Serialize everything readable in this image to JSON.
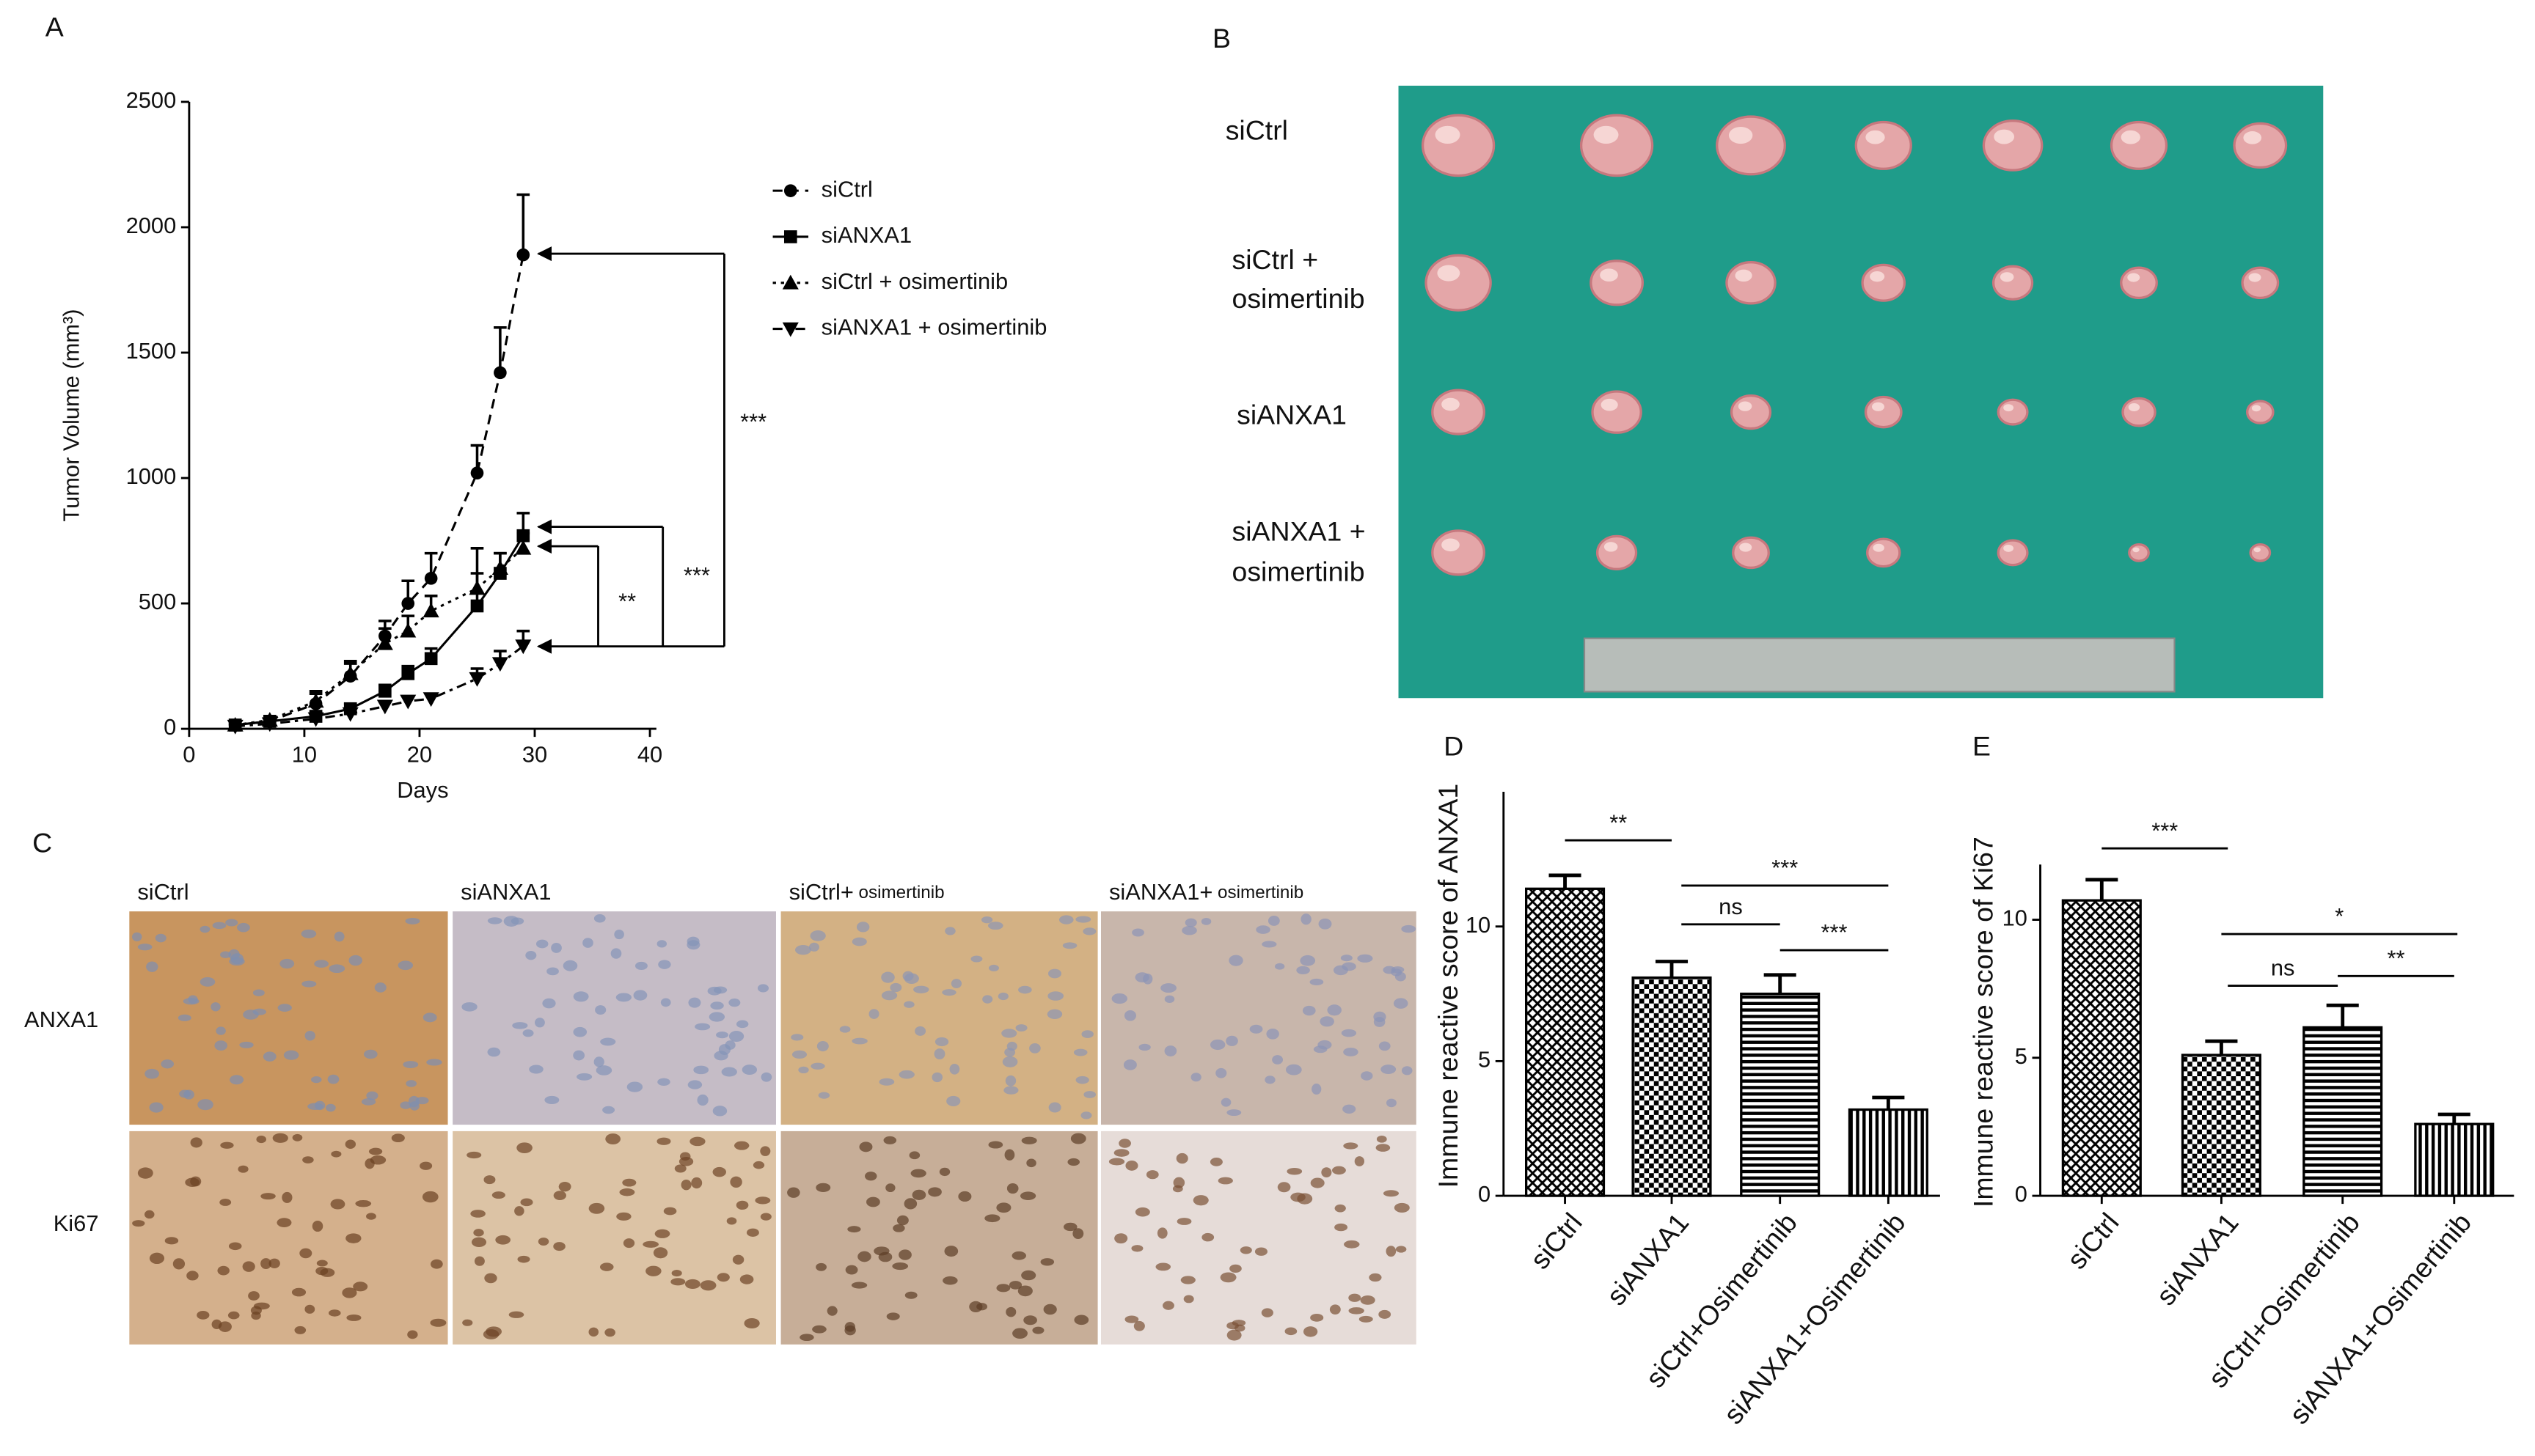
{
  "panel_labels": [
    "A",
    "B",
    "C",
    "D",
    "E"
  ],
  "chart_data": [
    {
      "type": "line",
      "xlabel": "Days",
      "ylabel": "Tumor Volume (mm³)",
      "x": [
        4,
        7,
        11,
        14,
        17,
        19,
        21,
        25,
        27,
        29
      ],
      "xlim": [
        0,
        40
      ],
      "xticks": [
        0,
        10,
        20,
        30,
        40
      ],
      "ylim": [
        0,
        2500
      ],
      "yticks": [
        0,
        500,
        1000,
        1500,
        2000,
        2500
      ],
      "series": [
        {
          "name": "siCtrl",
          "color": "#000000",
          "marker": "circle",
          "dash": "dashed",
          "values": [
            15,
            30,
            100,
            210,
            370,
            500,
            600,
            1020,
            1420,
            1890
          ],
          "errors": [
            20,
            20,
            40,
            50,
            60,
            90,
            100,
            110,
            180,
            240
          ]
        },
        {
          "name": "siANXA1",
          "color": "#000000",
          "marker": "square",
          "dash": "solid",
          "values": [
            15,
            30,
            50,
            80,
            150,
            220,
            280,
            490,
            620,
            770
          ],
          "errors": [
            5,
            10,
            15,
            20,
            25,
            30,
            40,
            230,
            80,
            90
          ]
        },
        {
          "name": "siCtrl + osimertinib",
          "color": "#000000",
          "marker": "triangle-up",
          "dash": "dotted",
          "values": [
            15,
            35,
            110,
            220,
            340,
            390,
            470,
            560,
            640,
            720
          ],
          "errors": [
            10,
            15,
            40,
            50,
            60,
            60,
            60,
            60,
            60,
            60
          ]
        },
        {
          "name": "siANXA1 + osimertinib",
          "color": "#000000",
          "marker": "triangle-down",
          "dash": "dashdot",
          "values": [
            10,
            20,
            40,
            60,
            90,
            110,
            120,
            200,
            260,
            330
          ],
          "errors": [
            5,
            10,
            15,
            20,
            20,
            20,
            20,
            40,
            50,
            60
          ]
        }
      ],
      "annotations": [
        "***",
        "***",
        "**"
      ]
    },
    {
      "type": "bar",
      "ylabel": "Immune reactive score of ANXA1",
      "categories": [
        "siCtrl",
        "siANXA1",
        "siCtrl+Osimertinib",
        "siANXA1+Osimertinib"
      ],
      "values": [
        11.4,
        8.1,
        7.5,
        3.2
      ],
      "errors": [
        0.5,
        0.6,
        0.7,
        0.45
      ],
      "patterns": [
        "crosshatch",
        "checker",
        "hlines",
        "vlines"
      ],
      "color": "#000000",
      "ylim": [
        0,
        15
      ],
      "yticks": [
        0,
        5,
        10
      ],
      "annotations": [
        "**",
        "ns",
        "***",
        "***"
      ]
    },
    {
      "type": "bar",
      "ylabel": "Immune reactive score of Ki67",
      "categories": [
        "siCtrl",
        "siANXA1",
        "siCtrl+Osimertinib",
        "siANXA1+Osimertinib"
      ],
      "values": [
        10.7,
        5.1,
        6.1,
        2.6
      ],
      "errors": [
        0.75,
        0.5,
        0.8,
        0.35
      ],
      "patterns": [
        "crosshatch",
        "checker",
        "hlines",
        "vlines"
      ],
      "color": "#000000",
      "ylim": [
        0,
        12
      ],
      "yticks": [
        0,
        5,
        10
      ],
      "annotations": [
        "***",
        "*",
        "ns",
        "**"
      ]
    }
  ],
  "tumor_photo": {
    "rows": [
      [
        "siCtrl"
      ],
      [
        "siCtrl +",
        "osimertinib"
      ],
      [
        "siANXA1"
      ],
      [
        "siANXA1 +",
        "osimertinib"
      ]
    ]
  },
  "ihc_photo": {
    "columns": [
      [
        "siCtrl"
      ],
      [
        "siANXA1"
      ],
      [
        "siCtrl+",
        "osimertinib"
      ],
      [
        "siANXA1+",
        "osimertinib"
      ]
    ],
    "rows": [
      "ANXA1",
      "Ki67"
    ]
  }
}
